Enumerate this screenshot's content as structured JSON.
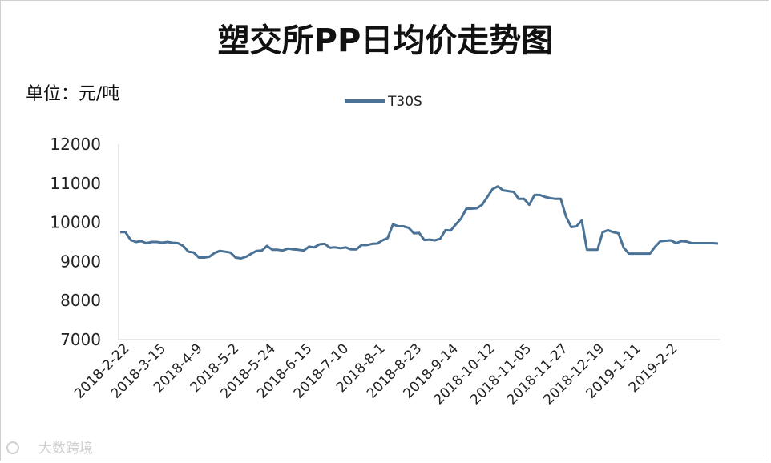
{
  "chart_data": {
    "type": "line",
    "title": "塑交所PP日均价走势图",
    "unit_label": "单位：元/吨",
    "ylim": [
      7000,
      12000
    ],
    "y_ticks": [
      "12000",
      "11000",
      "10000",
      "9000",
      "8000",
      "7000"
    ],
    "x_ticks": [
      "2018-2-22",
      "2018-3-15",
      "2018-4-9",
      "2018-5-2",
      "2018-5-24",
      "2018-6-15",
      "2018-7-10",
      "2018-8-1",
      "2018-8-23",
      "2018-9-14",
      "2018-10-12",
      "2018-11-05",
      "2018-11-27",
      "2018-12-19",
      "2019-1-11",
      "2019-2-2"
    ],
    "grid": false,
    "legend_position": "top",
    "series": [
      {
        "name": "T30S",
        "color": "#4a7196",
        "values": [
          9750,
          9750,
          9550,
          9500,
          9520,
          9470,
          9500,
          9500,
          9480,
          9500,
          9480,
          9470,
          9400,
          9250,
          9230,
          9100,
          9100,
          9120,
          9220,
          9270,
          9250,
          9230,
          9100,
          9080,
          9120,
          9200,
          9270,
          9280,
          9400,
          9300,
          9300,
          9280,
          9330,
          9310,
          9300,
          9280,
          9380,
          9360,
          9440,
          9450,
          9350,
          9360,
          9340,
          9360,
          9310,
          9310,
          9420,
          9420,
          9450,
          9460,
          9540,
          9600,
          9950,
          9900,
          9900,
          9860,
          9720,
          9730,
          9550,
          9560,
          9540,
          9580,
          9800,
          9790,
          9950,
          10100,
          10350,
          10350,
          10360,
          10450,
          10650,
          10850,
          10920,
          10820,
          10800,
          10780,
          10600,
          10600,
          10450,
          10700,
          10700,
          10650,
          10620,
          10600,
          10600,
          10150,
          9880,
          9900,
          10050,
          9300,
          9300,
          9300,
          9750,
          9800,
          9750,
          9720,
          9350,
          9200,
          9200,
          9200,
          9200,
          9200,
          9380,
          9520,
          9530,
          9540,
          9470,
          9520,
          9510,
          9470,
          9470,
          9470,
          9470,
          9470,
          9460
        ]
      }
    ]
  },
  "watermark": "大数跨境"
}
